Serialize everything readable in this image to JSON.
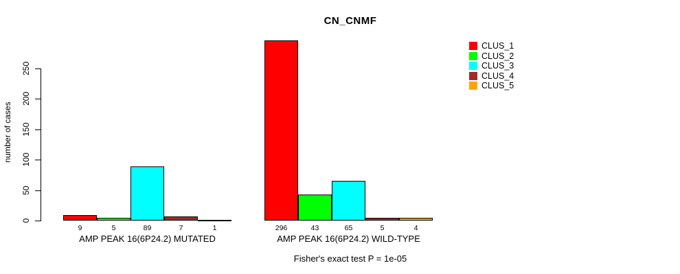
{
  "chart_data": {
    "type": "bar",
    "title": "CN_CNMF",
    "xlabel": "",
    "ylabel": "number of cases",
    "ylim": [
      0,
      250
    ],
    "yticks": [
      0,
      50,
      100,
      150,
      200,
      250
    ],
    "grid": false,
    "legend_position": "right",
    "categories": [
      "AMP PEAK 16(6P24.2) MUTATED",
      "AMP PEAK 16(6P24.2) WILD-TYPE"
    ],
    "series": [
      {
        "name": "CLUS_1",
        "color": "#FF0000",
        "values": [
          9,
          296
        ]
      },
      {
        "name": "CLUS_2",
        "color": "#00FF00",
        "values": [
          5,
          43
        ]
      },
      {
        "name": "CLUS_3",
        "color": "#00FFFF",
        "values": [
          89,
          65
        ]
      },
      {
        "name": "CLUS_4",
        "color": "#A52A2A",
        "values": [
          7,
          5
        ]
      },
      {
        "name": "CLUS_5",
        "color": "#FFA500",
        "values": [
          1,
          4
        ]
      }
    ],
    "bar_value_labels_shown": true,
    "annotation": "Fisher's exact test P = 1e-05"
  }
}
